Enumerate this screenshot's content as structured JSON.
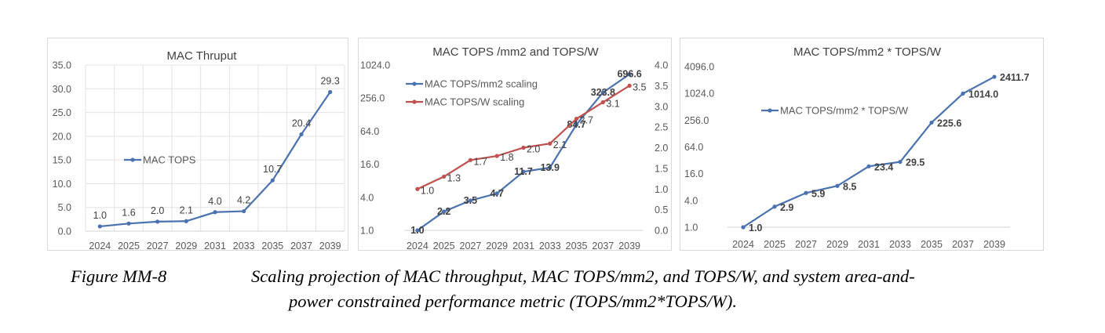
{
  "caption": {
    "label": "Figure MM-8",
    "text_line1": "Scaling projection of MAC throughput, MAC TOPS/mm2, and TOPS/W, and system area-and-",
    "text_line2": "power constrained performance metric (TOPS/mm2*TOPS/W)."
  },
  "colors": {
    "blue": "#4a72b0",
    "red": "#c0504d",
    "grid": "#e3e3e3",
    "axis_text": "#595959"
  },
  "chart_data": [
    {
      "id": "mac-thruput",
      "type": "line",
      "title": "MAC Thruput",
      "categories": [
        "2024",
        "2025",
        "2027",
        "2029",
        "2031",
        "2033",
        "2035",
        "2037",
        "2039"
      ],
      "y_ticks": [
        "0.0",
        "5.0",
        "10.0",
        "15.0",
        "20.0",
        "25.0",
        "30.0",
        "35.0"
      ],
      "ylim": [
        0,
        35
      ],
      "grid": true,
      "legend_position": "center-left",
      "series": [
        {
          "name": "MAC TOPS",
          "values": [
            1.0,
            1.6,
            2.0,
            2.1,
            4.0,
            4.2,
            10.7,
            20.4,
            29.3
          ],
          "labels": [
            "1.0",
            "1.6",
            "2.0",
            "2.1",
            "4.0",
            "4.2",
            "10.7",
            "20.4",
            "29.3"
          ],
          "color": "#4a72b0"
        }
      ]
    },
    {
      "id": "tops-mm2-tops-w",
      "type": "line",
      "title": "MAC TOPS /mm2 and TOPS/W",
      "categories": [
        "2024",
        "2025",
        "2027",
        "2029",
        "2031",
        "2033",
        "2035",
        "2037",
        "2039"
      ],
      "y_scale": "log2",
      "y_ticks": [
        "1.0",
        "4.0",
        "16.0",
        "64.0",
        "256.0",
        "1024.0"
      ],
      "ylim": [
        1,
        1024
      ],
      "y2_ticks": [
        "0.0",
        "0.5",
        "1.0",
        "1.5",
        "2.0",
        "2.5",
        "3.0",
        "3.5",
        "4.0"
      ],
      "y2lim": [
        0,
        4
      ],
      "grid": false,
      "legend_position": "top-left",
      "series": [
        {
          "name": "MAC TOPS/mm2 scaling",
          "axis": "left",
          "values": [
            1.0,
            2.2,
            3.5,
            4.7,
            11.7,
            13.9,
            84.7,
            323.8,
            696.6
          ],
          "labels": [
            "1.0",
            "2.2",
            "3.5",
            "4.7",
            "11.7",
            "13.9",
            "84.7",
            "323.8",
            "696.6"
          ],
          "color": "#4a72b0"
        },
        {
          "name": "MAC TOPS/W scaling",
          "axis": "right",
          "values": [
            1.0,
            1.3,
            1.7,
            1.8,
            2.0,
            2.1,
            2.7,
            3.1,
            3.5
          ],
          "labels": [
            "1.0",
            "1.3",
            "1.7",
            "1.8",
            "2.0",
            "2.1",
            "2.7",
            "3.1",
            "3.5"
          ],
          "color": "#c0504d"
        }
      ]
    },
    {
      "id": "tops-mm2-x-tops-w",
      "type": "line",
      "title": "MAC TOPS/mm2 * TOPS/W",
      "categories": [
        "2024",
        "2025",
        "2027",
        "2029",
        "2031",
        "2033",
        "2035",
        "2037",
        "2039"
      ],
      "y_scale": "log2",
      "y_ticks": [
        "1.0",
        "4.0",
        "16.0",
        "64.0",
        "256.0",
        "1024.0",
        "4096.0"
      ],
      "ylim": [
        1,
        4096
      ],
      "grid": false,
      "legend_position": "top-left",
      "series": [
        {
          "name": "MAC TOPS/mm2 * TOPS/W",
          "values": [
            1.0,
            2.9,
            5.9,
            8.5,
            23.4,
            29.5,
            225.6,
            1014.0,
            2411.7
          ],
          "labels": [
            "1.0",
            "2.9",
            "5.9",
            "8.5",
            "23.4",
            "29.5",
            "225.6",
            "1014.0",
            "2411.7"
          ],
          "color": "#4a72b0"
        }
      ]
    }
  ]
}
